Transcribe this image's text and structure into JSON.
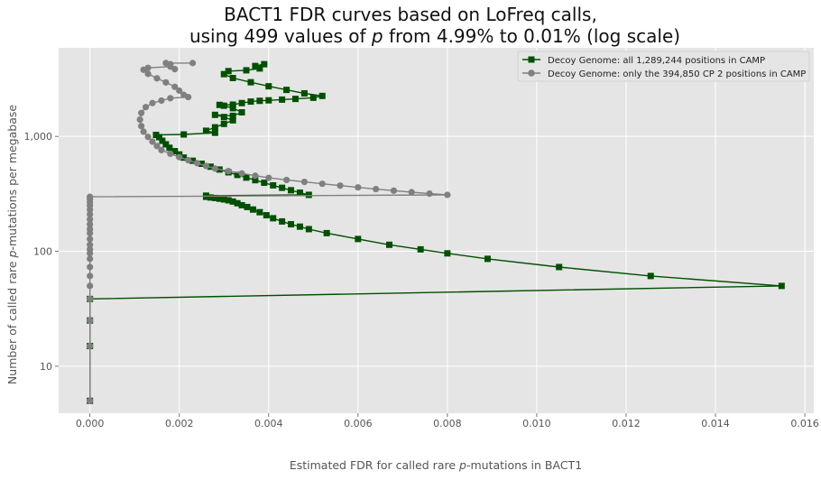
{
  "chart_data": {
    "type": "line",
    "title_line1": "BACT1 FDR curves based on LoFreq calls,",
    "title_line2_pre": "using 499 values of ",
    "title_line2_var": "p",
    "title_line2_post": " from 4.99% to 0.01% (log scale)",
    "xlabel_pre": "Estimated FDR for called rare ",
    "xlabel_var": "p",
    "xlabel_post": "-mutations in BACT1",
    "ylabel_pre": "Number of called rare ",
    "ylabel_var": "p",
    "ylabel_post": "-mutations per megabase",
    "x_ticks": [
      "0.000",
      "0.002",
      "0.004",
      "0.006",
      "0.008",
      "0.010",
      "0.012",
      "0.014",
      "0.016"
    ],
    "x_tick_values": [
      0,
      0.002,
      0.004,
      0.006,
      0.008,
      0.01,
      0.012,
      0.014,
      0.016
    ],
    "y_ticks": [
      "10",
      "100",
      "1,000"
    ],
    "y_tick_values": [
      10,
      100,
      1000
    ],
    "xlim": [
      -0.0007,
      0.0162
    ],
    "ylim": [
      3.9,
      5900
    ],
    "y_scale": "log",
    "grid": true,
    "legend_position": "top-right",
    "plot_background": "#e5e5e5",
    "grid_color": "#ffffff",
    "series": [
      {
        "name": "Decoy Genome: all 1,289,244 positions in CAMP",
        "color": "#005000",
        "marker": "square",
        "points": [
          [
            0,
            5
          ],
          [
            0,
            15
          ],
          [
            0,
            25
          ],
          [
            0,
            38.5
          ],
          [
            0.01548,
            50
          ],
          [
            0.01255,
            61
          ],
          [
            0.0105,
            73
          ],
          [
            0.0089,
            86
          ],
          [
            0.008,
            96
          ],
          [
            0.0074,
            104
          ],
          [
            0.0067,
            114
          ],
          [
            0.006,
            128
          ],
          [
            0.0053,
            144
          ],
          [
            0.0049,
            156
          ],
          [
            0.0047,
            164
          ],
          [
            0.0045,
            172
          ],
          [
            0.0043,
            182
          ],
          [
            0.0041,
            194
          ],
          [
            0.00395,
            206
          ],
          [
            0.0038,
            219
          ],
          [
            0.00365,
            231
          ],
          [
            0.00352,
            243
          ],
          [
            0.0034,
            252
          ],
          [
            0.0033,
            262
          ],
          [
            0.0032,
            271
          ],
          [
            0.0031,
            278
          ],
          [
            0.003,
            283
          ],
          [
            0.0029,
            287
          ],
          [
            0.0028,
            291
          ],
          [
            0.0027,
            294
          ],
          [
            0.0026,
            298
          ],
          [
            0.0026,
            305
          ],
          [
            0.0049,
            310
          ],
          [
            0.0047,
            324
          ],
          [
            0.0045,
            340
          ],
          [
            0.0043,
            357
          ],
          [
            0.0041,
            375
          ],
          [
            0.0039,
            395
          ],
          [
            0.0037,
            416
          ],
          [
            0.0035,
            438
          ],
          [
            0.0033,
            462
          ],
          [
            0.0031,
            487
          ],
          [
            0.0029,
            515
          ],
          [
            0.0027,
            545
          ],
          [
            0.0025,
            578
          ],
          [
            0.0023,
            614
          ],
          [
            0.0021,
            654
          ],
          [
            0.002,
            697
          ],
          [
            0.0019,
            744
          ],
          [
            0.00178,
            796
          ],
          [
            0.0017,
            853
          ],
          [
            0.00162,
            916
          ],
          [
            0.00155,
            985
          ],
          [
            0.00148,
            1030
          ],
          [
            0.0021,
            1040
          ],
          [
            0.0028,
            1075
          ],
          [
            0.0026,
            1120
          ],
          [
            0.0028,
            1200
          ],
          [
            0.003,
            1285
          ],
          [
            0.0032,
            1380
          ],
          [
            0.003,
            1475
          ],
          [
            0.0028,
            1540
          ],
          [
            0.0032,
            1510
          ],
          [
            0.0034,
            1620
          ],
          [
            0.0032,
            1760
          ],
          [
            0.003,
            1850
          ],
          [
            0.0029,
            1880
          ],
          [
            0.0032,
            1890
          ],
          [
            0.0034,
            1950
          ],
          [
            0.0036,
            2010
          ],
          [
            0.0038,
            2040
          ],
          [
            0.004,
            2060
          ],
          [
            0.0043,
            2090
          ],
          [
            0.0046,
            2120
          ],
          [
            0.005,
            2170
          ],
          [
            0.0052,
            2250
          ],
          [
            0.0048,
            2370
          ],
          [
            0.0044,
            2540
          ],
          [
            0.004,
            2730
          ],
          [
            0.0036,
            2960
          ],
          [
            0.0032,
            3220
          ],
          [
            0.003,
            3480
          ],
          [
            0.0031,
            3700
          ],
          [
            0.0035,
            3760
          ],
          [
            0.0038,
            3900
          ],
          [
            0.0037,
            4100
          ],
          [
            0.0039,
            4250
          ]
        ]
      },
      {
        "name": "Decoy Genome: only the 394,850 CP 2 positions in CAMP",
        "color": "#808080",
        "marker": "circle",
        "points": [
          [
            0,
            5
          ],
          [
            0,
            15
          ],
          [
            0,
            25
          ],
          [
            0,
            38.5
          ],
          [
            0,
            50
          ],
          [
            0,
            61
          ],
          [
            0,
            73
          ],
          [
            0,
            86
          ],
          [
            0,
            96
          ],
          [
            0,
            104
          ],
          [
            0,
            114
          ],
          [
            0,
            128
          ],
          [
            0,
            144
          ],
          [
            0,
            156
          ],
          [
            0,
            172
          ],
          [
            0,
            190
          ],
          [
            0,
            210
          ],
          [
            0,
            230
          ],
          [
            0,
            250
          ],
          [
            0,
            268
          ],
          [
            0,
            285
          ],
          [
            0,
            298
          ],
          [
            0.008,
            310
          ],
          [
            0.0076,
            318
          ],
          [
            0.0072,
            327
          ],
          [
            0.0068,
            337
          ],
          [
            0.0064,
            348
          ],
          [
            0.006,
            360
          ],
          [
            0.0056,
            373
          ],
          [
            0.0052,
            387
          ],
          [
            0.0048,
            402
          ],
          [
            0.0044,
            418
          ],
          [
            0.004,
            436
          ],
          [
            0.0037,
            455
          ],
          [
            0.0034,
            476
          ],
          [
            0.0031,
            499
          ],
          [
            0.0028,
            525
          ],
          [
            0.0026,
            553
          ],
          [
            0.0024,
            585
          ],
          [
            0.0022,
            620
          ],
          [
            0.002,
            660
          ],
          [
            0.0018,
            706
          ],
          [
            0.0016,
            760
          ],
          [
            0.0015,
            825
          ],
          [
            0.0014,
            900
          ],
          [
            0.0013,
            990
          ],
          [
            0.0012,
            1100
          ],
          [
            0.00115,
            1230
          ],
          [
            0.00112,
            1400
          ],
          [
            0.00115,
            1600
          ],
          [
            0.00125,
            1800
          ],
          [
            0.0014,
            1950
          ],
          [
            0.0016,
            2050
          ],
          [
            0.0018,
            2150
          ],
          [
            0.0022,
            2200
          ],
          [
            0.0021,
            2300
          ],
          [
            0.002,
            2500
          ],
          [
            0.0019,
            2700
          ],
          [
            0.0017,
            2950
          ],
          [
            0.0015,
            3200
          ],
          [
            0.0013,
            3500
          ],
          [
            0.0012,
            3800
          ],
          [
            0.0013,
            3950
          ],
          [
            0.0018,
            4050
          ],
          [
            0.0019,
            3850
          ],
          [
            0.0018,
            4250
          ],
          [
            0.0017,
            4350
          ],
          [
            0.0023,
            4350
          ]
        ]
      }
    ]
  }
}
